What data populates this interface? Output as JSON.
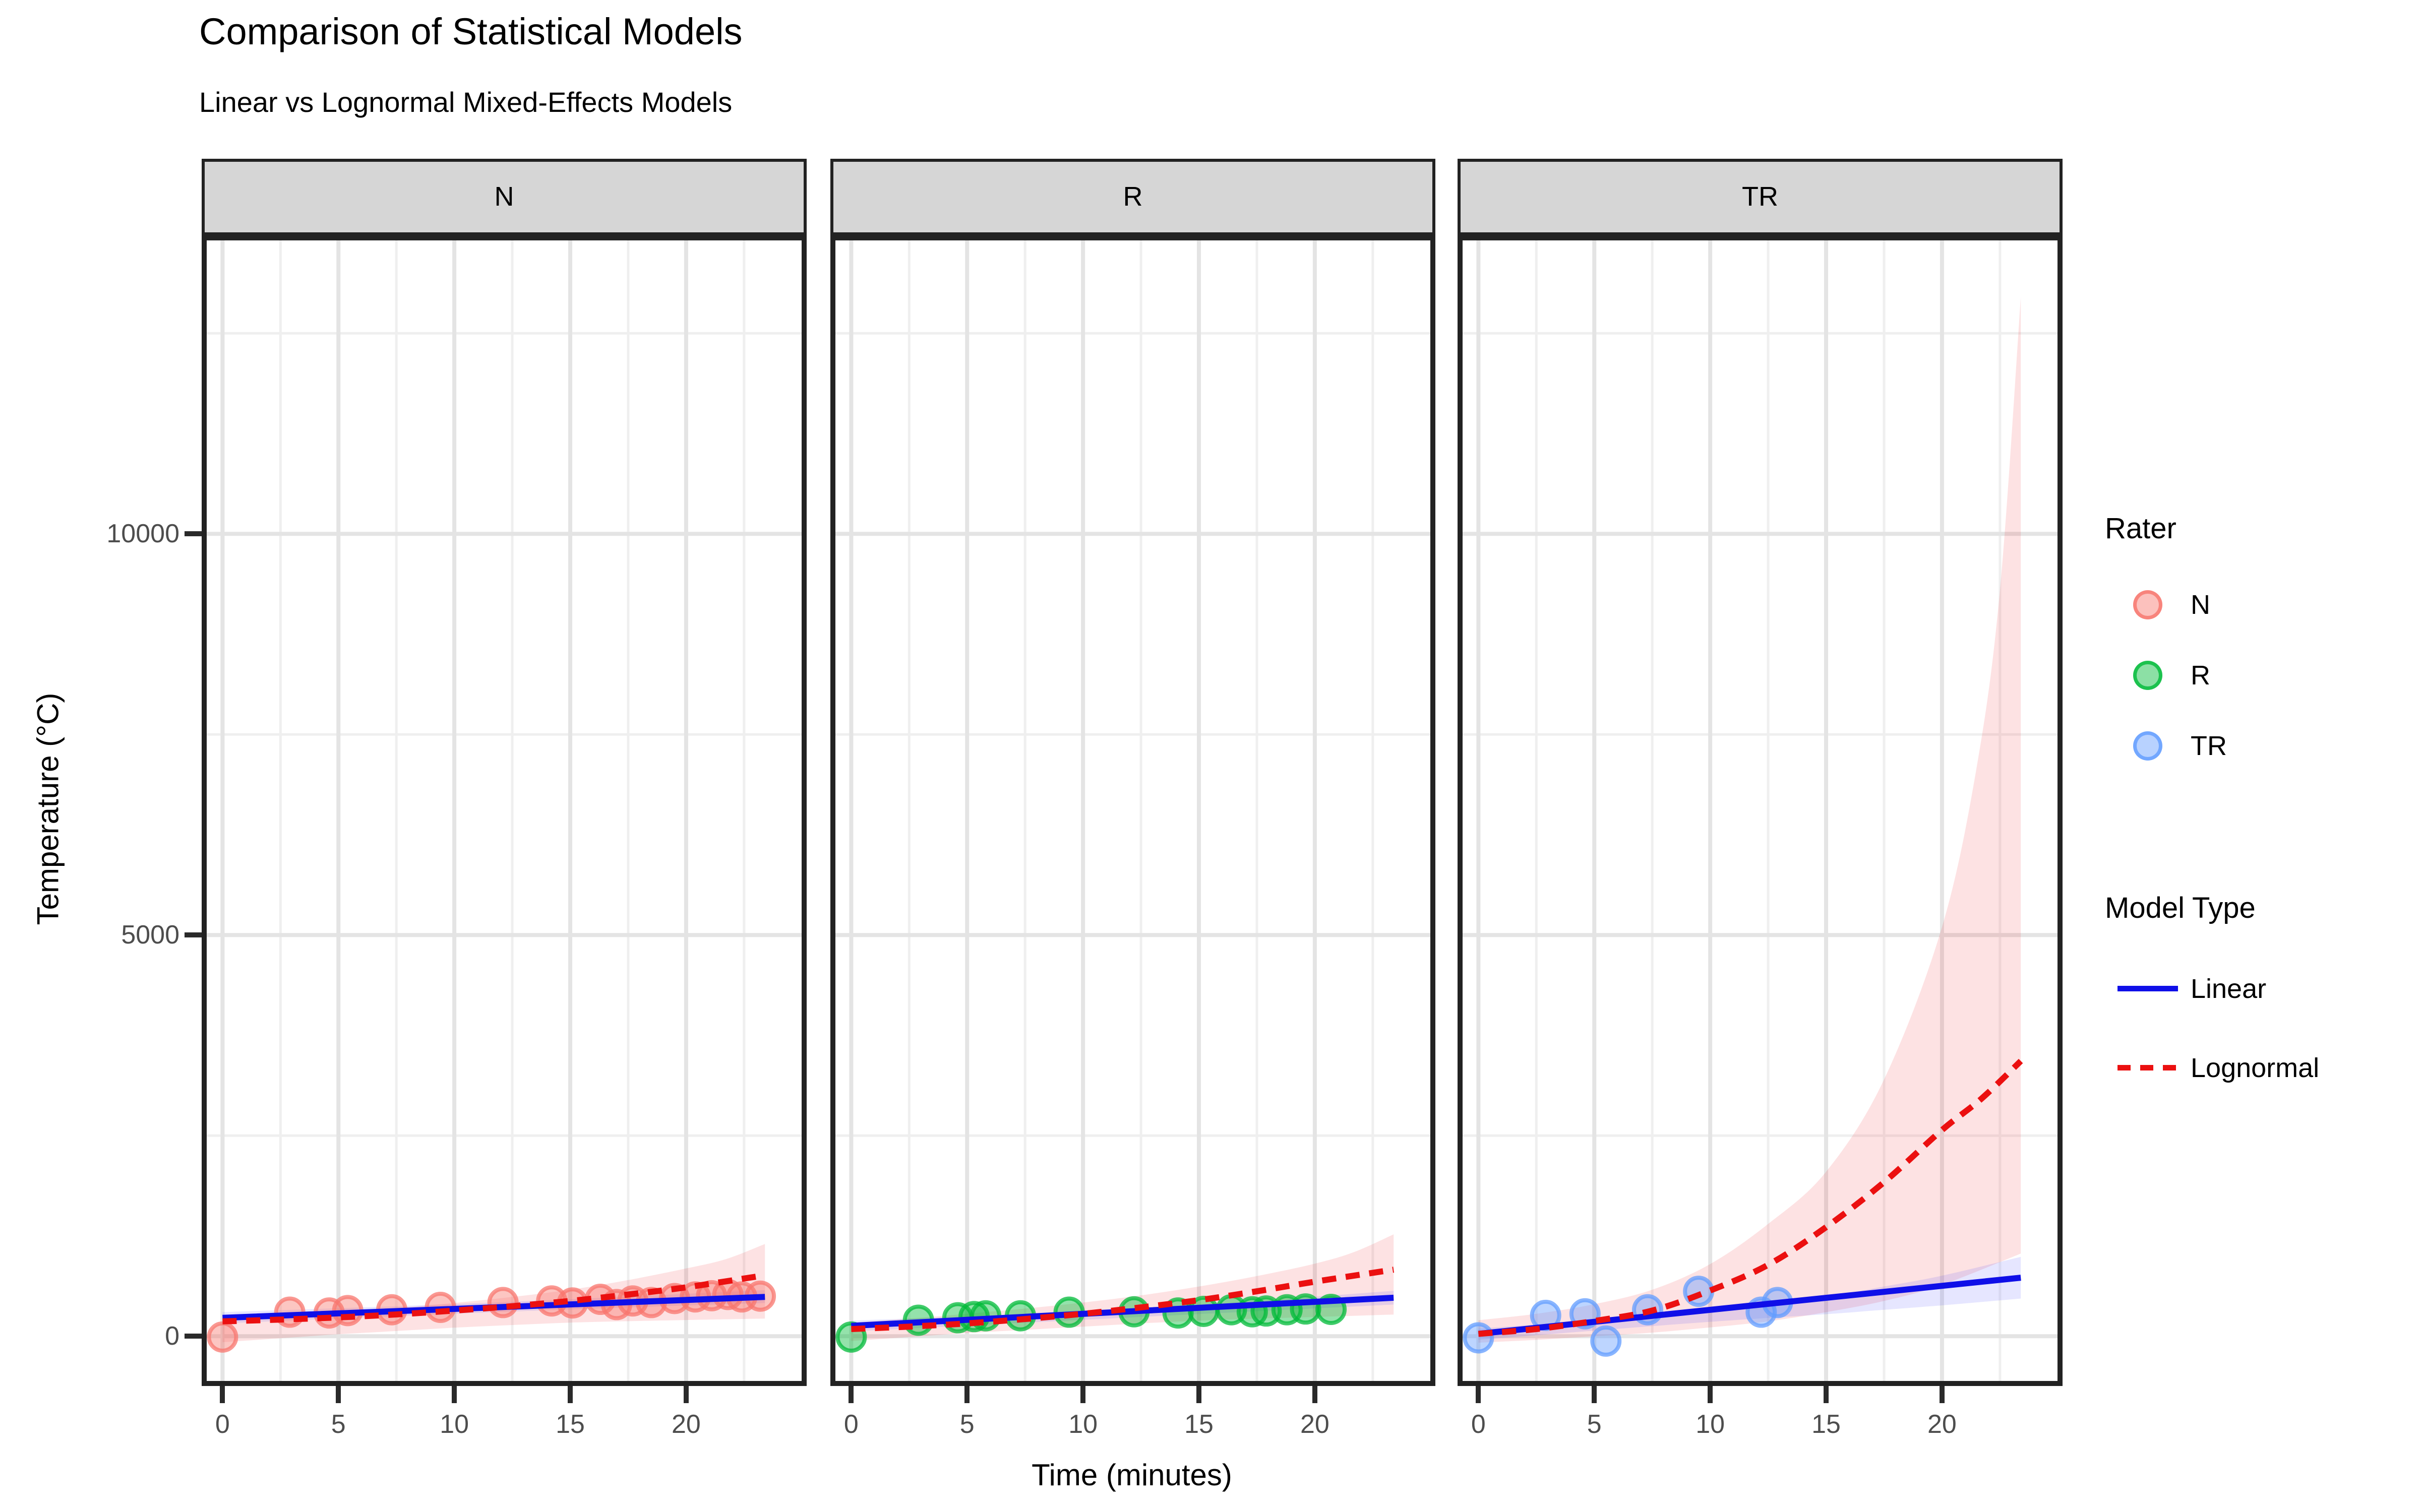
{
  "title": "Comparison of Statistical Models",
  "subtitle": "Linear vs Lognormal Mixed-Effects Models",
  "x_axis": {
    "title": "Time (minutes)",
    "ticks": [
      0,
      5,
      10,
      15,
      20
    ],
    "minor_ticks": [
      2.5,
      7.5,
      12.5,
      17.5,
      22.5
    ],
    "domain": [
      -0.9,
      25.2
    ]
  },
  "y_axis": {
    "title": "Temperature (°C)",
    "ticks": [
      0,
      5000,
      10000
    ],
    "minor_ticks": [
      2500,
      7500,
      12500
    ],
    "domain": [
      -620,
      13720
    ]
  },
  "facets": [
    "N",
    "R",
    "TR"
  ],
  "legend": {
    "rater": {
      "title": "Rater",
      "items": [
        {
          "label": "N",
          "color": "#F8766D"
        },
        {
          "label": "R",
          "color": "#00BA38"
        },
        {
          "label": "TR",
          "color": "#619CFF"
        }
      ]
    },
    "model_type": {
      "title": "Model Type",
      "items": [
        {
          "label": "Linear",
          "style": "solid",
          "color": "#0F0FE8"
        },
        {
          "label": "Lognormal",
          "style": "dashed",
          "color": "#EB1010"
        }
      ]
    }
  },
  "style_colors": {
    "strip_fill": "#D6D6D6",
    "panel_border": "#222222",
    "grid_major": "#E4E4E4",
    "grid_minor": "#EFEFEF",
    "tick_label": "#4D4D4D",
    "linear_line": "#0F0FE8",
    "lognormal_line": "#EB1010",
    "lognormal_ribbon": "#ED1C24",
    "linear_ribbon": "#3333FF"
  },
  "chart_data": {
    "type": "scatter",
    "title": "Comparison of Statistical Models",
    "subtitle": "Linear vs Lognormal Mixed-Effects Models",
    "xlabel": "Time (minutes)",
    "ylabel": "Temperature (°C)",
    "xlim": [
      -0.9,
      25.2
    ],
    "ylim": [
      -620,
      13720
    ],
    "grid": true,
    "legend_position": "right",
    "facet_panels": [
      {
        "facet": "N",
        "rater": "N",
        "point_color": "#F8766D",
        "points": [
          [
            0,
            -10
          ],
          [
            2.9,
            300
          ],
          [
            4.6,
            290
          ],
          [
            5.4,
            320
          ],
          [
            7.3,
            330
          ],
          [
            9.4,
            360
          ],
          [
            12.1,
            420
          ],
          [
            14.2,
            440
          ],
          [
            15.1,
            415
          ],
          [
            16.3,
            460
          ],
          [
            17.0,
            395
          ],
          [
            17.7,
            440
          ],
          [
            18.5,
            420
          ],
          [
            19.5,
            470
          ],
          [
            20.4,
            490
          ],
          [
            21.1,
            505
          ],
          [
            21.8,
            520
          ],
          [
            22.4,
            490
          ],
          [
            23.2,
            500
          ]
        ],
        "linear_fit": [
          [
            0,
            230
          ],
          [
            23.4,
            490
          ]
        ],
        "linear_ribbon": {
          "top": [
            [
              0,
              300
            ],
            [
              11.7,
              420
            ],
            [
              23.4,
              575
            ]
          ],
          "bottom": [
            [
              0,
              160
            ],
            [
              11.7,
              300
            ],
            [
              23.4,
              415
            ]
          ]
        },
        "lognormal_fit": [
          [
            0,
            185
          ],
          [
            2.5,
            208
          ],
          [
            5,
            235
          ],
          [
            7.5,
            272
          ],
          [
            10,
            320
          ],
          [
            12.5,
            375
          ],
          [
            15,
            440
          ],
          [
            17.5,
            520
          ],
          [
            20,
            610
          ],
          [
            23.4,
            760
          ]
        ],
        "lognormal_ribbon": {
          "top": [
            [
              0,
              205
            ],
            [
              2.5,
              250
            ],
            [
              5,
              305
            ],
            [
              7.5,
              355
            ],
            [
              10,
              415
            ],
            [
              12.5,
              490
            ],
            [
              15,
              580
            ],
            [
              17.5,
              700
            ],
            [
              20,
              845
            ],
            [
              21.7,
              960
            ],
            [
              23.4,
              1150
            ]
          ],
          "bottom": [
            [
              0,
              -75
            ],
            [
              2.5,
              -25
            ],
            [
              5,
              25
            ],
            [
              7.5,
              65
            ],
            [
              10,
              107
            ],
            [
              12.5,
              140
            ],
            [
              15,
              170
            ],
            [
              17.5,
              188
            ],
            [
              20,
              202
            ],
            [
              23.4,
              220
            ]
          ]
        }
      },
      {
        "facet": "R",
        "rater": "R",
        "point_color": "#00BA38",
        "points": [
          [
            0,
            -10
          ],
          [
            2.9,
            200
          ],
          [
            4.6,
            230
          ],
          [
            5.3,
            245
          ],
          [
            5.8,
            255
          ],
          [
            7.3,
            255
          ],
          [
            9.4,
            300
          ],
          [
            12.2,
            305
          ],
          [
            14.1,
            290
          ],
          [
            15.2,
            310
          ],
          [
            16.4,
            330
          ],
          [
            17.3,
            305
          ],
          [
            17.9,
            315
          ],
          [
            18.8,
            330
          ],
          [
            19.6,
            340
          ],
          [
            20.7,
            335
          ]
        ],
        "linear_fit": [
          [
            0,
            130
          ],
          [
            23.4,
            480
          ]
        ],
        "linear_ribbon": {
          "top": [
            [
              0,
              195
            ],
            [
              11.7,
              330
            ],
            [
              23.4,
              565
            ]
          ],
          "bottom": [
            [
              0,
              60
            ],
            [
              11.7,
              230
            ],
            [
              23.4,
              395
            ]
          ]
        },
        "lognormal_fit": [
          [
            0,
            90
          ],
          [
            2.5,
            120
          ],
          [
            5,
            160
          ],
          [
            7.5,
            215
          ],
          [
            10,
            280
          ],
          [
            12.5,
            360
          ],
          [
            15,
            450
          ],
          [
            17.5,
            560
          ],
          [
            20,
            680
          ],
          [
            23.4,
            830
          ]
        ],
        "lognormal_ribbon": {
          "top": [
            [
              0,
              170
            ],
            [
              2.5,
              220
            ],
            [
              5,
              280
            ],
            [
              7.5,
              345
            ],
            [
              10,
              420
            ],
            [
              12.5,
              510
            ],
            [
              15,
              620
            ],
            [
              17.5,
              750
            ],
            [
              20,
              905
            ],
            [
              21.7,
              1050
            ],
            [
              23.4,
              1270
            ]
          ],
          "bottom": [
            [
              0,
              -60
            ],
            [
              2.5,
              -10
            ],
            [
              5,
              40
            ],
            [
              7.5,
              80
            ],
            [
              10,
              120
            ],
            [
              12.5,
              160
            ],
            [
              15,
              195
            ],
            [
              17.5,
              220
            ],
            [
              20,
              240
            ],
            [
              23.4,
              270
            ]
          ]
        }
      },
      {
        "facet": "TR",
        "rater": "TR",
        "point_color": "#619CFF",
        "points": [
          [
            0,
            -20
          ],
          [
            2.9,
            260
          ],
          [
            4.6,
            280
          ],
          [
            5.5,
            -60
          ],
          [
            7.3,
            330
          ],
          [
            9.5,
            560
          ],
          [
            12.2,
            300
          ],
          [
            12.9,
            420
          ]
        ],
        "linear_fit": [
          [
            0,
            30
          ],
          [
            23.4,
            730
          ]
        ],
        "linear_ribbon": {
          "top": [
            [
              0,
              95
            ],
            [
              5,
              200
            ],
            [
              10,
              335
            ],
            [
              15,
              500
            ],
            [
              17.5,
              620
            ],
            [
              20,
              755
            ],
            [
              23.4,
              990
            ]
          ],
          "bottom": [
            [
              0,
              -45
            ],
            [
              5,
              70
            ],
            [
              10,
              180
            ],
            [
              15,
              275
            ],
            [
              17.5,
              330
            ],
            [
              20,
              385
            ],
            [
              23.4,
              470
            ]
          ]
        },
        "lognormal_fit": [
          [
            0,
            30
          ],
          [
            2.5,
            90
          ],
          [
            5,
            190
          ],
          [
            7.5,
            320
          ],
          [
            10,
            570
          ],
          [
            12.5,
            890
          ],
          [
            15,
            1360
          ],
          [
            17.5,
            1920
          ],
          [
            20,
            2570
          ],
          [
            21.7,
            2960
          ],
          [
            23.4,
            3430
          ]
        ],
        "lognormal_ribbon": {
          "top": [
            [
              0,
              200
            ],
            [
              2.5,
              280
            ],
            [
              5,
              400
            ],
            [
              7.5,
              580
            ],
            [
              10,
              900
            ],
            [
              12.5,
              1400
            ],
            [
              15,
              2050
            ],
            [
              17.5,
              3200
            ],
            [
              20,
              5100
            ],
            [
              21.5,
              7100
            ],
            [
              22.5,
              9300
            ],
            [
              23.4,
              12950
            ]
          ],
          "bottom": [
            [
              0,
              -80
            ],
            [
              2.5,
              -45
            ],
            [
              5,
              0
            ],
            [
              7.5,
              45
            ],
            [
              10,
              110
            ],
            [
              12.5,
              185
            ],
            [
              15,
              300
            ],
            [
              17.5,
              440
            ],
            [
              20,
              640
            ],
            [
              23.4,
              1030
            ]
          ]
        }
      }
    ]
  }
}
